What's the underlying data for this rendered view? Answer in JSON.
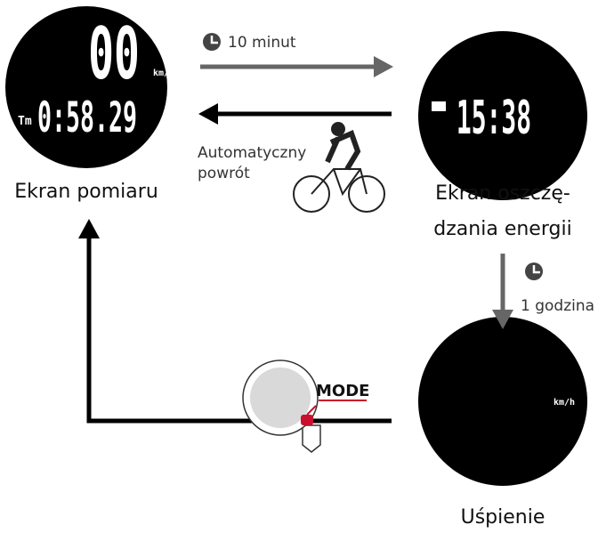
{
  "screens": [
    {
      "label": "Ekran pomiaru",
      "display": {
        "speed": "00",
        "unit": "km/h",
        "time_label": "Tm",
        "time": "0:58.29"
      }
    },
    {
      "label_lines": [
        "Ekran oszczę-",
        "dzania energii"
      ],
      "display": {
        "clock": "15:38"
      }
    },
    {
      "label": "Uśpienie",
      "display": {
        "unit": "km/h"
      }
    }
  ],
  "transitions": [
    {
      "label": "10 minut"
    },
    {
      "label_lines": [
        "Automatyczny",
        "powrót"
      ]
    },
    {
      "label": "1 godzina"
    }
  ],
  "button": {
    "label": "MODE"
  }
}
